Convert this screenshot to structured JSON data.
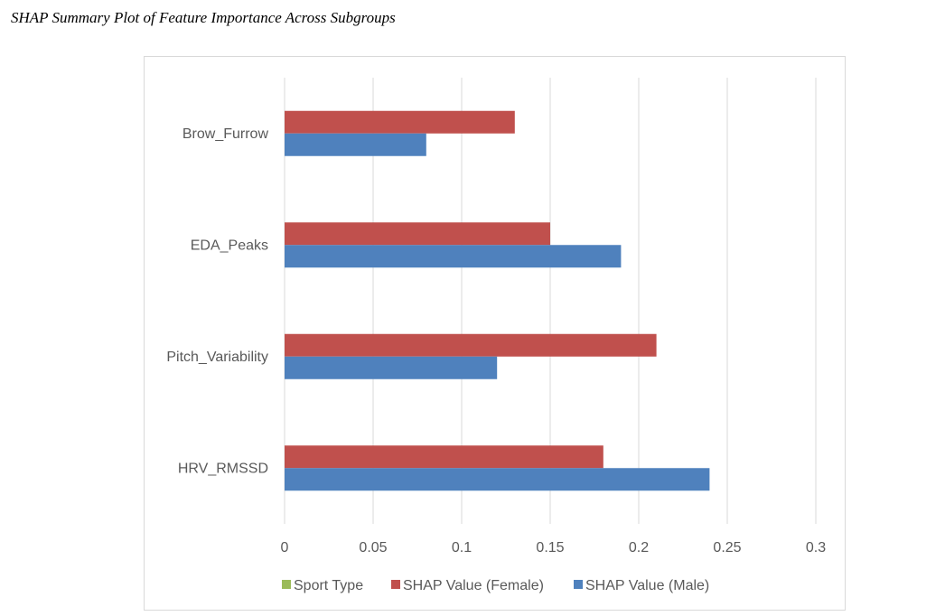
{
  "caption": "SHAP Summary Plot of Feature Importance Across Subgroups",
  "chart_data": {
    "type": "bar",
    "orientation": "horizontal",
    "title": "",
    "xlabel": "",
    "ylabel": "",
    "categories": [
      "Brow_Furrow",
      "EDA_Peaks",
      "Pitch_Variability",
      "HRV_RMSSD"
    ],
    "series": [
      {
        "name": "Sport Type",
        "color": "#9bbb59",
        "values": [
          0,
          0,
          0,
          0
        ]
      },
      {
        "name": "SHAP Value (Female)",
        "color": "#c0504d",
        "values": [
          0.13,
          0.15,
          0.21,
          0.18
        ]
      },
      {
        "name": "SHAP Value (Male)",
        "color": "#4f81bd",
        "values": [
          0.08,
          0.19,
          0.12,
          0.24
        ]
      }
    ],
    "xlim": [
      0,
      0.3
    ],
    "xticks": [
      "0",
      "0.05",
      "0.1",
      "0.15",
      "0.2",
      "0.25",
      "0.3"
    ],
    "grid": "vertical",
    "legend": "bottom"
  }
}
